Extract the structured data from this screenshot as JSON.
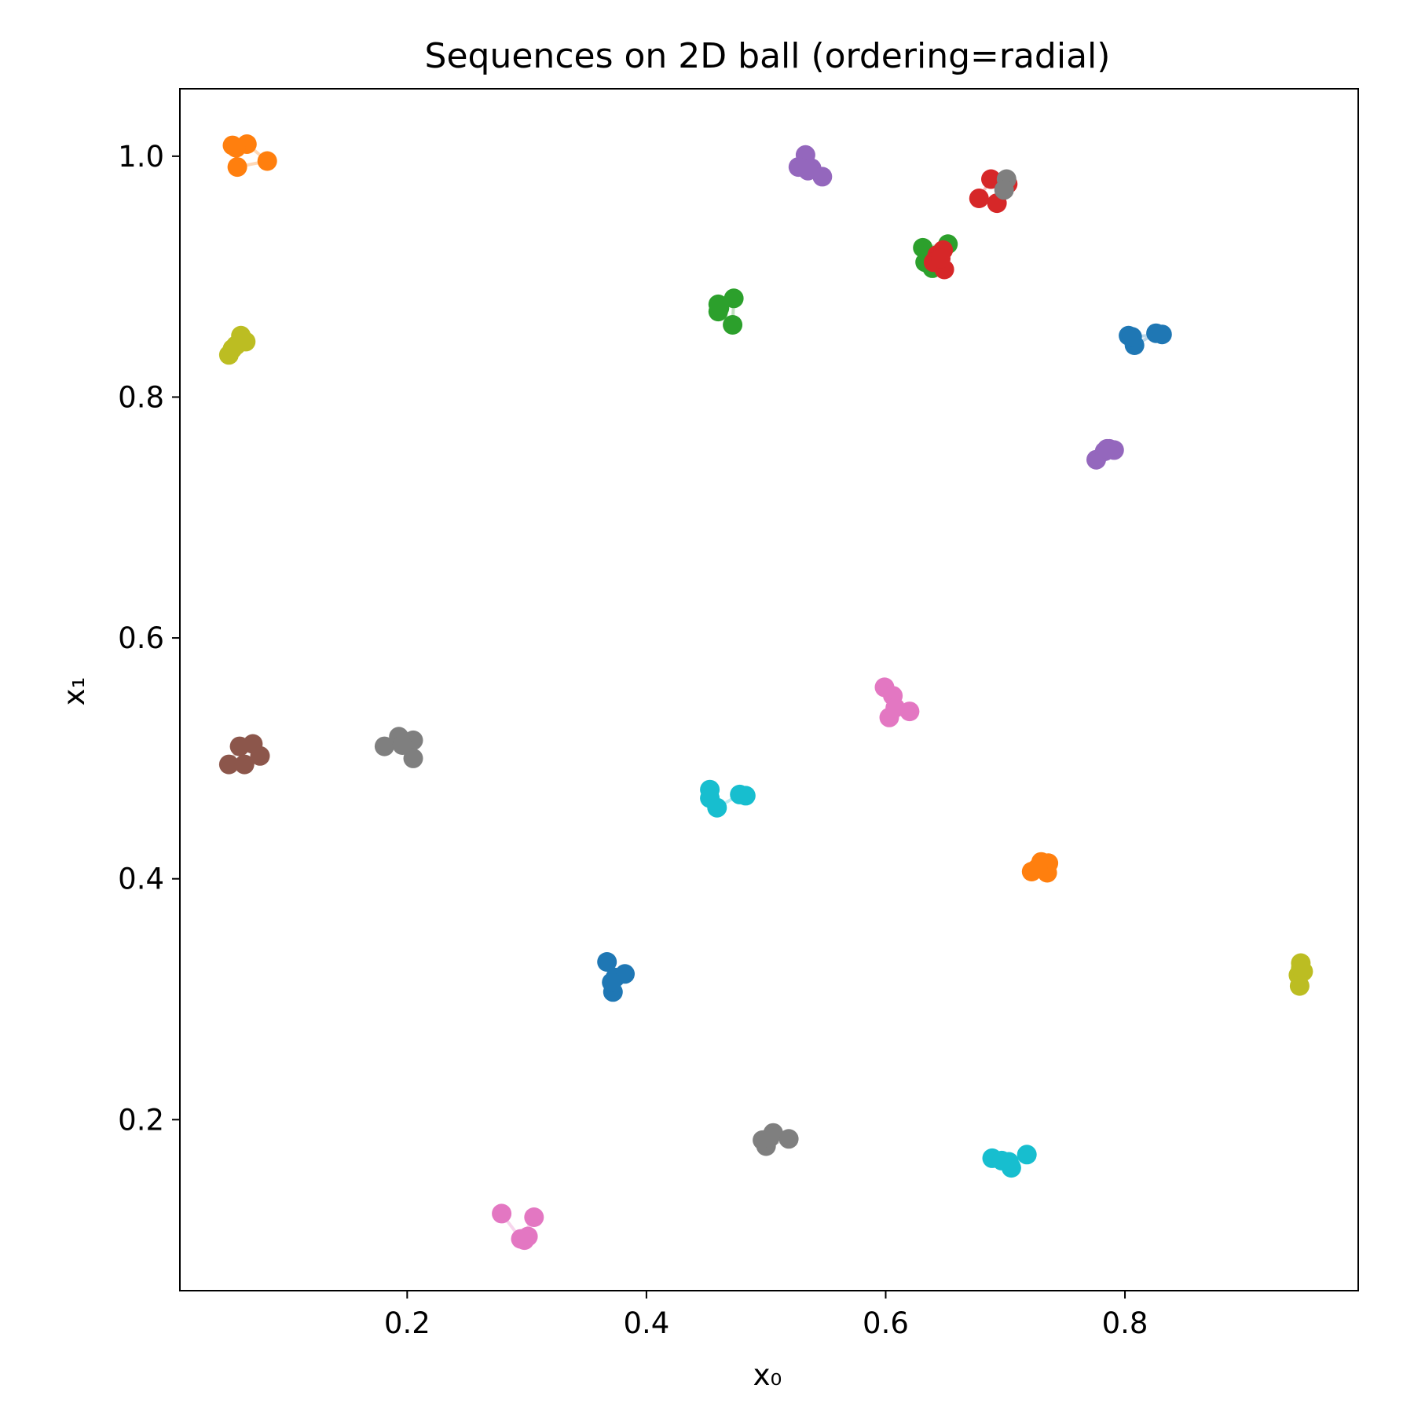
{
  "chart_data": {
    "type": "scatter",
    "title": "Sequences on 2D ball (ordering=radial)",
    "xlabel": "x₀",
    "ylabel": "x₁",
    "xlim": [
      0.01,
      0.995
    ],
    "ylim": [
      0.058,
      1.056
    ],
    "xticks": [
      {
        "value": 0.2,
        "label": "0.2"
      },
      {
        "value": 0.4,
        "label": "0.4"
      },
      {
        "value": 0.6,
        "label": "0.6"
      },
      {
        "value": 0.8,
        "label": "0.8"
      }
    ],
    "yticks": [
      {
        "value": 0.2,
        "label": "0.2"
      },
      {
        "value": 0.4,
        "label": "0.4"
      },
      {
        "value": 0.6,
        "label": "0.6"
      },
      {
        "value": 0.8,
        "label": "0.8"
      },
      {
        "value": 1.0,
        "label": "1.0"
      }
    ],
    "grid": false,
    "legend": "none",
    "series": [
      {
        "color": "#1f77b4",
        "points": [
          [
            0.367,
            0.331
          ],
          [
            0.372,
            0.306
          ],
          [
            0.382,
            0.321
          ],
          [
            0.374,
            0.318
          ],
          [
            0.371,
            0.314
          ]
        ]
      },
      {
        "color": "#1f77b4",
        "points": [
          [
            0.803,
            0.851
          ],
          [
            0.808,
            0.843
          ],
          [
            0.826,
            0.853
          ],
          [
            0.831,
            0.852
          ],
          [
            0.806,
            0.85
          ]
        ]
      },
      {
        "color": "#ff7f0e",
        "points": [
          [
            0.054,
            1.009
          ],
          [
            0.066,
            1.01
          ],
          [
            0.083,
            0.996
          ],
          [
            0.058,
            0.991
          ],
          [
            0.057,
            1.007
          ]
        ]
      },
      {
        "color": "#ff7f0e",
        "points": [
          [
            0.722,
            0.406
          ],
          [
            0.736,
            0.413
          ],
          [
            0.735,
            0.405
          ],
          [
            0.73,
            0.414
          ],
          [
            0.727,
            0.409
          ]
        ]
      },
      {
        "color": "#2ca02c",
        "points": [
          [
            0.46,
            0.877
          ],
          [
            0.46,
            0.871
          ],
          [
            0.473,
            0.882
          ],
          [
            0.472,
            0.86
          ],
          [
            0.461,
            0.874
          ]
        ]
      },
      {
        "color": "#2ca02c",
        "points": [
          [
            0.631,
            0.924
          ],
          [
            0.652,
            0.927
          ],
          [
            0.639,
            0.907
          ],
          [
            0.633,
            0.912
          ],
          [
            0.635,
            0.918
          ]
        ]
      },
      {
        "color": "#d62728",
        "points": [
          [
            0.678,
            0.965
          ],
          [
            0.688,
            0.981
          ],
          [
            0.702,
            0.977
          ],
          [
            0.693,
            0.961
          ],
          [
            0.7,
            0.98
          ]
        ]
      },
      {
        "color": "#d62728",
        "points": [
          [
            0.643,
            0.918
          ],
          [
            0.648,
            0.922
          ],
          [
            0.649,
            0.906
          ],
          [
            0.64,
            0.912
          ],
          [
            0.646,
            0.915
          ]
        ]
      },
      {
        "color": "#9467bd",
        "points": [
          [
            0.533,
            1.001
          ],
          [
            0.538,
            0.99
          ],
          [
            0.547,
            0.983
          ],
          [
            0.527,
            0.991
          ],
          [
            0.535,
            0.988
          ]
        ]
      },
      {
        "color": "#9467bd",
        "points": [
          [
            0.776,
            0.748
          ],
          [
            0.787,
            0.757
          ],
          [
            0.791,
            0.756
          ],
          [
            0.783,
            0.755
          ],
          [
            0.785,
            0.757
          ]
        ]
      },
      {
        "color": "#8c564b",
        "points": [
          [
            0.051,
            0.495
          ],
          [
            0.06,
            0.51
          ],
          [
            0.071,
            0.512
          ],
          [
            0.077,
            0.502
          ],
          [
            0.064,
            0.495
          ]
        ]
      },
      {
        "color": "#e377c2",
        "points": [
          [
            0.279,
            0.122
          ],
          [
            0.295,
            0.101
          ],
          [
            0.306,
            0.119
          ],
          [
            0.298,
            0.1
          ],
          [
            0.301,
            0.103
          ]
        ]
      },
      {
        "color": "#e377c2",
        "points": [
          [
            0.599,
            0.559
          ],
          [
            0.606,
            0.552
          ],
          [
            0.62,
            0.539
          ],
          [
            0.603,
            0.534
          ],
          [
            0.608,
            0.542
          ]
        ]
      },
      {
        "color": "#7f7f7f",
        "points": [
          [
            0.181,
            0.51
          ],
          [
            0.193,
            0.518
          ],
          [
            0.205,
            0.515
          ],
          [
            0.205,
            0.5
          ],
          [
            0.196,
            0.511
          ]
        ]
      },
      {
        "color": "#7f7f7f",
        "points": [
          [
            0.497,
            0.183
          ],
          [
            0.506,
            0.189
          ],
          [
            0.519,
            0.184
          ],
          [
            0.5,
            0.178
          ],
          [
            0.503,
            0.185
          ]
        ]
      },
      {
        "color": "#7f7f7f",
        "points": [
          [
            0.701,
            0.981
          ],
          [
            0.699,
            0.972
          ]
        ]
      },
      {
        "color": "#bcbd22",
        "points": [
          [
            0.051,
            0.835
          ],
          [
            0.061,
            0.851
          ],
          [
            0.065,
            0.846
          ],
          [
            0.054,
            0.84
          ],
          [
            0.057,
            0.843
          ]
        ]
      },
      {
        "color": "#bcbd22",
        "points": [
          [
            0.947,
            0.33
          ],
          [
            0.949,
            0.323
          ],
          [
            0.946,
            0.311
          ],
          [
            0.945,
            0.32
          ],
          [
            0.947,
            0.326
          ]
        ]
      },
      {
        "color": "#17becf",
        "points": [
          [
            0.453,
            0.474
          ],
          [
            0.453,
            0.467
          ],
          [
            0.459,
            0.459
          ],
          [
            0.478,
            0.47
          ],
          [
            0.483,
            0.469
          ]
        ]
      },
      {
        "color": "#17becf",
        "points": [
          [
            0.689,
            0.168
          ],
          [
            0.703,
            0.165
          ],
          [
            0.718,
            0.171
          ],
          [
            0.705,
            0.16
          ],
          [
            0.697,
            0.166
          ]
        ]
      }
    ]
  }
}
